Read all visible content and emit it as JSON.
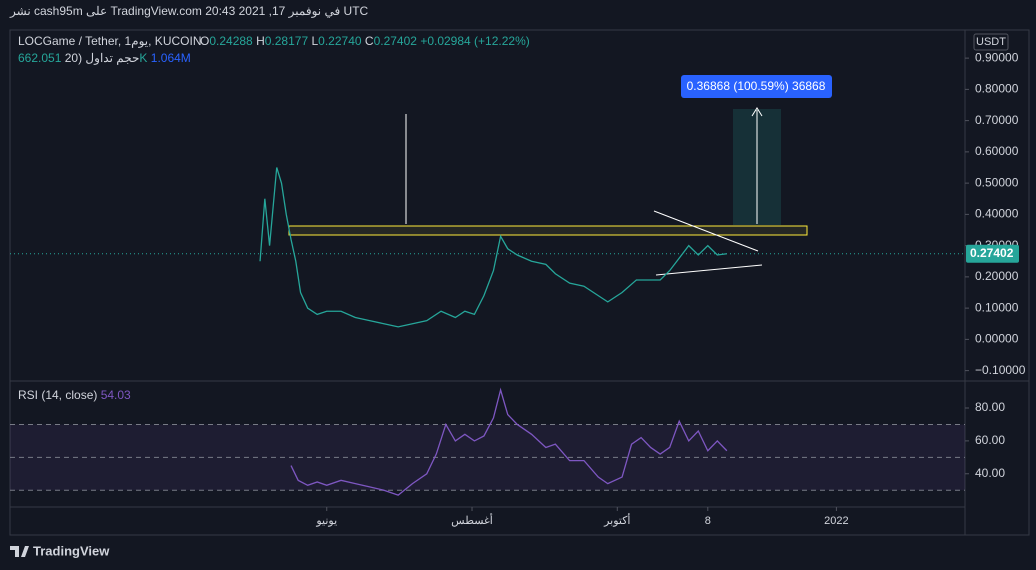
{
  "header": {
    "published": "نشر cash95m على TradingView.com في نوفمبر 17, 2021 20:43 UTC"
  },
  "chart_data": [
    {
      "type": "line",
      "symbol": "LOCGame / Tether, 1يوم, KUCOIN",
      "ohlc": {
        "o_label": "O",
        "o": "0.24288",
        "h_label": "H",
        "h": "0.28177",
        "l_label": "L",
        "l": "0.22740",
        "c_label": "C",
        "c": "0.27402",
        "change": "+0.02984 (+12.22%)"
      },
      "volume_legend": {
        "name": "حجم تداول (20",
        "value": "662.051K",
        "ma": "1.064M"
      },
      "currency": "USDT",
      "measure": "0.36868 (100.59%) 36868",
      "x": [
        -28,
        -26,
        -24,
        -21,
        -19,
        -17,
        -15,
        -13,
        -11,
        -8,
        -4,
        0,
        6,
        12,
        18,
        24,
        30,
        36,
        42,
        48,
        54,
        58,
        62,
        66,
        70,
        73,
        76,
        80,
        86,
        92,
        96,
        102,
        108,
        114,
        118,
        124,
        130,
        136,
        140,
        144,
        148,
        152,
        156,
        160,
        164,
        168
      ],
      "series": [
        {
          "name": "LOCGame / Tether",
          "color": "#26a69a",
          "values": [
            0.25,
            0.45,
            0.3,
            0.55,
            0.5,
            0.4,
            0.32,
            0.25,
            0.15,
            0.1,
            0.08,
            0.09,
            0.09,
            0.07,
            0.06,
            0.05,
            0.04,
            0.05,
            0.06,
            0.09,
            0.07,
            0.09,
            0.08,
            0.14,
            0.22,
            0.33,
            0.29,
            0.27,
            0.25,
            0.24,
            0.21,
            0.18,
            0.17,
            0.14,
            0.12,
            0.15,
            0.19,
            0.19,
            0.19,
            0.22,
            0.26,
            0.3,
            0.27,
            0.3,
            0.27,
            0.27402
          ]
        }
      ],
      "last_price": 0.27402,
      "xlim": [
        -133,
        268
      ],
      "xticks": [
        {
          "value": 0,
          "label": "يونيو"
        },
        {
          "value": 61,
          "label": "أغسطس"
        },
        {
          "value": 122,
          "label": "أكتوبر"
        },
        {
          "value": 160,
          "label": "8"
        },
        {
          "value": 214,
          "label": "2022"
        }
      ],
      "ylim": [
        -0.13,
        0.99
      ],
      "yticks": [
        {
          "value": 0.9,
          "label": "0.90000"
        },
        {
          "value": 0.8,
          "label": "0.80000"
        },
        {
          "value": 0.7,
          "label": "0.70000"
        },
        {
          "value": 0.6,
          "label": "0.60000"
        },
        {
          "value": 0.5,
          "label": "0.50000"
        },
        {
          "value": 0.4,
          "label": "0.40000"
        },
        {
          "value": 0.3,
          "label": "0.30000"
        },
        {
          "value": 0.2,
          "label": "0.20000"
        },
        {
          "value": 0.1,
          "label": "0.10000"
        },
        {
          "value": 0,
          "label": "0.00000"
        },
        {
          "value": -0.1,
          "label": "−0.10000"
        }
      ]
    },
    {
      "type": "line",
      "title": "RSI (14, close)",
      "last_value": "54.03",
      "x": [
        -15,
        -12,
        -8,
        -4,
        0,
        6,
        12,
        18,
        24,
        30,
        36,
        42,
        46,
        50,
        54,
        58,
        62,
        66,
        70,
        73,
        76,
        80,
        86,
        92,
        96,
        102,
        108,
        114,
        118,
        124,
        128,
        132,
        136,
        140,
        144,
        148,
        152,
        156,
        160,
        164,
        168
      ],
      "series": [
        {
          "name": "RSI",
          "color": "#7e57c2",
          "values": [
            45,
            36,
            33,
            35,
            33,
            36,
            34,
            32,
            30,
            27,
            34,
            40,
            52,
            70,
            60,
            64,
            60,
            63,
            74,
            91,
            76,
            70,
            64,
            56,
            58,
            48,
            48,
            38,
            34,
            38,
            58,
            62,
            56,
            52,
            56,
            72,
            60,
            66,
            54,
            60,
            54
          ]
        }
      ],
      "xlim": [
        -133,
        268
      ],
      "ylim": [
        21,
        94
      ],
      "bands": [
        70,
        50,
        30
      ],
      "yticks": [
        {
          "value": 80,
          "label": "80.00"
        },
        {
          "value": 60,
          "label": "60.00"
        },
        {
          "value": 40,
          "label": "40.00"
        }
      ]
    }
  ],
  "footer": {
    "brand": "TradingView"
  }
}
